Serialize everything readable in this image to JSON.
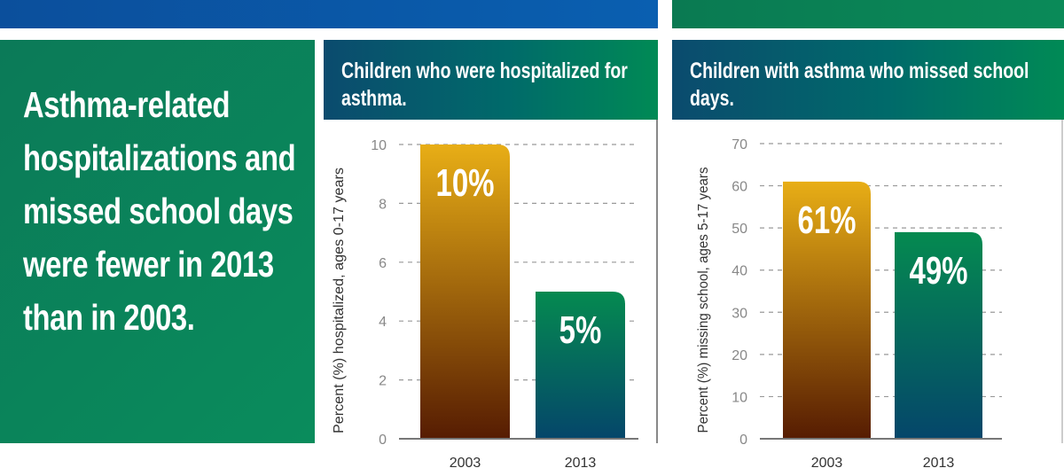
{
  "headline": "Asthma-related hospitalizations and missed school days were fewer in 2013 than in 2003.",
  "colors": {
    "bar_2003_top": "#e8ae16",
    "bar_2003_bottom": "#561c02",
    "bar_2013_top": "#058a50",
    "bar_2013_bottom": "#05466a",
    "top_bar_blue": "#0a5aa8",
    "top_bar_green": "#0a8055"
  },
  "chart_data": [
    {
      "type": "bar",
      "title": "Children who were hospitalized for asthma.",
      "ylabel": "Percent (%) hospitalized, ages 0-17 years",
      "categories": [
        "2003",
        "2013"
      ],
      "values": [
        10,
        5
      ],
      "data_labels": [
        "10%",
        "5%"
      ],
      "ylim": [
        0,
        10
      ],
      "yticks": [
        0,
        2,
        4,
        6,
        8,
        10
      ],
      "grid": true
    },
    {
      "type": "bar",
      "title": "Children with asthma who missed school days.",
      "ylabel": "Percent (%) missing school, ages 5-17 years",
      "categories": [
        "2003",
        "2013"
      ],
      "values": [
        61,
        49
      ],
      "data_labels": [
        "61%",
        "49%"
      ],
      "ylim": [
        0,
        70
      ],
      "yticks": [
        0,
        10,
        20,
        30,
        40,
        50,
        60,
        70
      ],
      "grid": true
    }
  ]
}
